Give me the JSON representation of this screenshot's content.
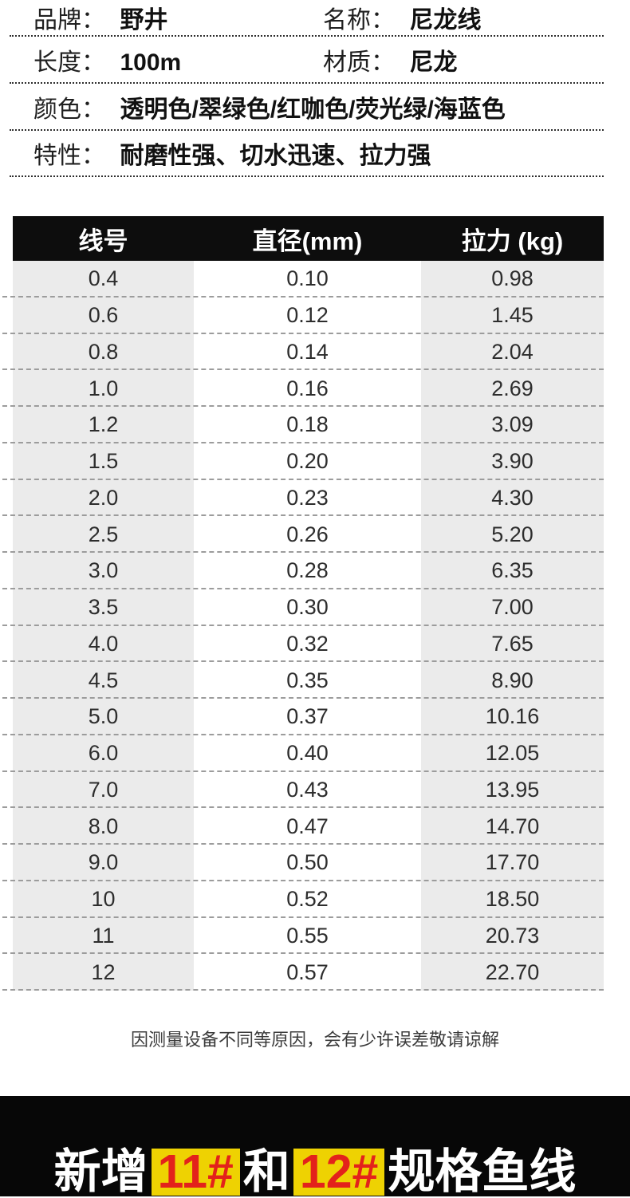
{
  "info": {
    "fields": [
      {
        "label": "品牌：",
        "value": "野井"
      },
      {
        "label": "名称：",
        "value": "尼龙线"
      },
      {
        "label": "长度：",
        "value": "100m"
      },
      {
        "label": "材质：",
        "value": "尼龙"
      },
      {
        "label": "颜色：",
        "value": "透明色/翠绿色/红咖色/荧光绿/海蓝色"
      },
      {
        "label": "特性：",
        "value": "耐磨性强、切水迅速、拉力强"
      }
    ]
  },
  "spec_table": {
    "columns": [
      "线号",
      "直径(mm)",
      "拉力 (kg)"
    ],
    "rows": [
      [
        "0.4",
        "0.10",
        "0.98"
      ],
      [
        "0.6",
        "0.12",
        "1.45"
      ],
      [
        "0.8",
        "0.14",
        "2.04"
      ],
      [
        "1.0",
        "0.16",
        "2.69"
      ],
      [
        "1.2",
        "0.18",
        "3.09"
      ],
      [
        "1.5",
        "0.20",
        "3.90"
      ],
      [
        "2.0",
        "0.23",
        "4.30"
      ],
      [
        "2.5",
        "0.26",
        "5.20"
      ],
      [
        "3.0",
        "0.28",
        "6.35"
      ],
      [
        "3.5",
        "0.30",
        "7.00"
      ],
      [
        "4.0",
        "0.32",
        "7.65"
      ],
      [
        "4.5",
        "0.35",
        "8.90"
      ],
      [
        "5.0",
        "0.37",
        "10.16"
      ],
      [
        "6.0",
        "0.40",
        "12.05"
      ],
      [
        "7.0",
        "0.43",
        "13.95"
      ],
      [
        "8.0",
        "0.47",
        "14.70"
      ],
      [
        "9.0",
        "0.50",
        "17.70"
      ],
      [
        "10",
        "0.52",
        "18.50"
      ],
      [
        "11",
        "0.55",
        "20.73"
      ],
      [
        "12",
        "0.57",
        "22.70"
      ]
    ]
  },
  "disclaimer": "因测量设备不同等原因，会有少许误差敬请谅解",
  "banner": {
    "segments": [
      {
        "text": "新增",
        "highlight": false
      },
      {
        "text": "11#",
        "highlight": true
      },
      {
        "text": "和",
        "highlight": false
      },
      {
        "text": "12#",
        "highlight": true
      },
      {
        "text": "规格鱼线",
        "highlight": false
      }
    ]
  },
  "colors": {
    "table_header_bg": "#0d0d0d",
    "row_shaded_bg": "#ebebeb",
    "dash_line": "#9c9c9c",
    "banner_bg": "#070707",
    "highlight_bg": "#eed202",
    "highlight_text": "#e3221b"
  }
}
